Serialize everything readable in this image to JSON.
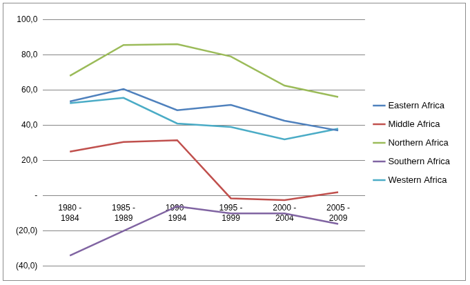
{
  "chart_data": {
    "type": "line",
    "categories": [
      "1980 - 1984",
      "1985 - 1989",
      "1990 - 1994",
      "1995 - 1999",
      "2000 - 2004",
      "2005 - 2009"
    ],
    "series": [
      {
        "name": "Eastern Africa",
        "color": "#4f81bd",
        "values": [
          53.5,
          60.5,
          48.5,
          51.5,
          42.5,
          37
        ]
      },
      {
        "name": "Middle Africa",
        "color": "#c0504d",
        "values": [
          25,
          30.5,
          31.5,
          -1.5,
          -2.5,
          2
        ]
      },
      {
        "name": "Northern Africa",
        "color": "#9bbb59",
        "values": [
          68,
          85.5,
          86,
          79,
          62.5,
          56
        ]
      },
      {
        "name": "Southern Africa",
        "color": "#8064a2",
        "values": [
          -34,
          -20,
          -6,
          -10,
          -10,
          -16
        ]
      },
      {
        "name": "Western Africa",
        "color": "#4bacc6",
        "values": [
          52.5,
          55.5,
          41,
          39,
          32,
          38
        ]
      }
    ],
    "ylim": [
      -40,
      100
    ],
    "yticks": [
      {
        "value": -40,
        "label": "(40,0)"
      },
      {
        "value": -20,
        "label": "(20,0)"
      },
      {
        "value": 0,
        "label": "-"
      },
      {
        "value": 20,
        "label": "20,0"
      },
      {
        "value": 40,
        "label": "40,0"
      },
      {
        "value": 60,
        "label": "60,0"
      },
      {
        "value": 80,
        "label": "80,0"
      },
      {
        "value": 100,
        "label": "100,0"
      }
    ],
    "grid": true,
    "legend": "right"
  }
}
